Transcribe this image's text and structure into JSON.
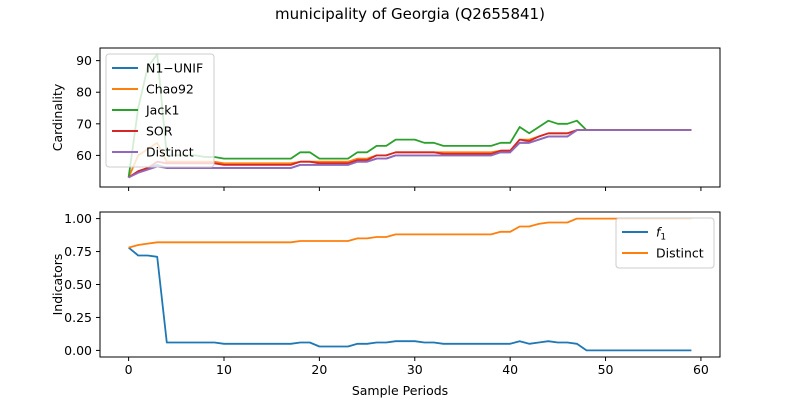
{
  "figure": {
    "title": "municipality of Georgia (Q2655841)"
  },
  "chart_data": [
    {
      "type": "line",
      "ylabel": "Cardinality",
      "xlabel": "",
      "xlim": [
        -3,
        62
      ],
      "ylim": [
        50,
        94
      ],
      "xticks": [
        0,
        10,
        20,
        30,
        40,
        50,
        60
      ],
      "yticks": [
        60,
        70,
        80,
        90
      ],
      "legend_position": "upper-left",
      "x": [
        0,
        1,
        2,
        3,
        4,
        5,
        6,
        7,
        8,
        9,
        10,
        11,
        12,
        13,
        14,
        15,
        16,
        17,
        18,
        19,
        20,
        21,
        22,
        23,
        24,
        25,
        26,
        27,
        28,
        29,
        30,
        31,
        32,
        33,
        34,
        35,
        36,
        37,
        38,
        39,
        40,
        41,
        42,
        43,
        44,
        45,
        46,
        47,
        48,
        49,
        50,
        51,
        52,
        53,
        54,
        55,
        56,
        57,
        58,
        59
      ],
      "series": [
        {
          "name": "N1−UNIF",
          "color": "#1f77b4",
          "values": [
            53,
            55,
            56,
            57,
            56,
            56,
            56,
            56,
            56,
            56,
            56,
            56,
            56,
            56,
            56,
            56,
            56,
            56,
            57,
            57,
            57,
            57,
            57,
            57,
            58,
            58,
            59,
            59,
            60,
            60,
            60,
            60,
            60,
            60,
            60,
            60,
            60,
            60,
            60,
            61,
            61,
            64,
            64,
            65,
            66,
            66,
            66,
            68,
            68,
            68,
            68,
            68,
            68,
            68,
            68,
            68,
            68,
            68,
            68,
            68
          ]
        },
        {
          "name": "Chao92",
          "color": "#ff7f0e",
          "values": [
            53,
            60,
            62,
            64,
            58,
            58,
            58,
            58,
            58,
            58,
            57.5,
            57.5,
            57.5,
            57.5,
            57.5,
            57.5,
            57.5,
            57.5,
            58,
            58,
            58,
            58,
            58,
            58,
            59,
            59,
            60,
            60,
            61,
            61,
            61,
            61,
            61,
            61,
            61,
            61,
            61,
            61,
            61,
            61.5,
            61.5,
            65,
            65,
            66,
            67,
            67,
            67,
            68,
            68,
            68,
            68,
            68,
            68,
            68,
            68,
            68,
            68,
            68,
            68,
            68
          ]
        },
        {
          "name": "Jack1",
          "color": "#2ca02c",
          "values": [
            53,
            75,
            88,
            92,
            60,
            60,
            60,
            60,
            59.5,
            59.5,
            59,
            59,
            59,
            59,
            59,
            59,
            59,
            59,
            61,
            61,
            59,
            59,
            59,
            59,
            61,
            61,
            63,
            63,
            65,
            65,
            65,
            64,
            64,
            63,
            63,
            63,
            63,
            63,
            63,
            64,
            64,
            69,
            67,
            69,
            71,
            70,
            70,
            71,
            68,
            68,
            68,
            68,
            68,
            68,
            68,
            68,
            68,
            68,
            68,
            68
          ]
        },
        {
          "name": "SOR",
          "color": "#d62728",
          "values": [
            53,
            55,
            56,
            58,
            57.5,
            57.5,
            57.5,
            57.5,
            57.5,
            57.5,
            57,
            57,
            57,
            57,
            57,
            57,
            57,
            57,
            58,
            58,
            57.5,
            57.5,
            57.5,
            57.5,
            58.5,
            58.5,
            60,
            60,
            61,
            61,
            61,
            61,
            61,
            60.5,
            60.5,
            60.5,
            60.5,
            60.5,
            60.5,
            61.5,
            61.5,
            65,
            64.5,
            66,
            67,
            67,
            67,
            68,
            68,
            68,
            68,
            68,
            68,
            68,
            68,
            68,
            68,
            68,
            68,
            68
          ]
        },
        {
          "name": "Distinct",
          "color": "#9467bd",
          "values": [
            53,
            54.5,
            55.5,
            56.5,
            56,
            56,
            56,
            56,
            56,
            56,
            56,
            56,
            56,
            56,
            56,
            56,
            56,
            56,
            57,
            57,
            57,
            57,
            57,
            57,
            58,
            58,
            59,
            59,
            60,
            60,
            60,
            60,
            60,
            60,
            60,
            60,
            60,
            60,
            60,
            61,
            61,
            64,
            64,
            65,
            66,
            66,
            66,
            68,
            68,
            68,
            68,
            68,
            68,
            68,
            68,
            68,
            68,
            68,
            68,
            68
          ]
        }
      ]
    },
    {
      "type": "line",
      "ylabel": "Indicators",
      "xlabel": "Sample Periods",
      "xlim": [
        -3,
        62
      ],
      "ylim": [
        -0.05,
        1.05
      ],
      "xticks": [
        0,
        10,
        20,
        30,
        40,
        50,
        60
      ],
      "yticks": [
        0.0,
        0.25,
        0.5,
        0.75,
        1.0
      ],
      "legend_position": "upper-right",
      "x": [
        0,
        1,
        2,
        3,
        4,
        5,
        6,
        7,
        8,
        9,
        10,
        11,
        12,
        13,
        14,
        15,
        16,
        17,
        18,
        19,
        20,
        21,
        22,
        23,
        24,
        25,
        26,
        27,
        28,
        29,
        30,
        31,
        32,
        33,
        34,
        35,
        36,
        37,
        38,
        39,
        40,
        41,
        42,
        43,
        44,
        45,
        46,
        47,
        48,
        49,
        50,
        51,
        52,
        53,
        54,
        55,
        56,
        57,
        58,
        59
      ],
      "series": [
        {
          "name": "f1",
          "label_main": "f",
          "label_sub": "1",
          "color": "#1f77b4",
          "values": [
            0.78,
            0.72,
            0.72,
            0.71,
            0.06,
            0.06,
            0.06,
            0.06,
            0.06,
            0.06,
            0.05,
            0.05,
            0.05,
            0.05,
            0.05,
            0.05,
            0.05,
            0.05,
            0.06,
            0.06,
            0.03,
            0.03,
            0.03,
            0.03,
            0.05,
            0.05,
            0.06,
            0.06,
            0.07,
            0.07,
            0.07,
            0.06,
            0.06,
            0.05,
            0.05,
            0.05,
            0.05,
            0.05,
            0.05,
            0.05,
            0.05,
            0.07,
            0.05,
            0.06,
            0.07,
            0.06,
            0.06,
            0.05,
            0.0,
            0.0,
            0.0,
            0.0,
            0.0,
            0.0,
            0.0,
            0.0,
            0.0,
            0.0,
            0.0,
            0.0
          ]
        },
        {
          "name": "Distinct",
          "color": "#ff7f0e",
          "values": [
            0.78,
            0.8,
            0.81,
            0.82,
            0.82,
            0.82,
            0.82,
            0.82,
            0.82,
            0.82,
            0.82,
            0.82,
            0.82,
            0.82,
            0.82,
            0.82,
            0.82,
            0.82,
            0.83,
            0.83,
            0.83,
            0.83,
            0.83,
            0.83,
            0.85,
            0.85,
            0.86,
            0.86,
            0.88,
            0.88,
            0.88,
            0.88,
            0.88,
            0.88,
            0.88,
            0.88,
            0.88,
            0.88,
            0.88,
            0.9,
            0.9,
            0.94,
            0.94,
            0.96,
            0.97,
            0.97,
            0.97,
            1.0,
            1.0,
            1.0,
            1.0,
            1.0,
            1.0,
            1.0,
            1.0,
            1.0,
            1.0,
            1.0,
            1.0,
            1.0
          ]
        }
      ]
    }
  ]
}
